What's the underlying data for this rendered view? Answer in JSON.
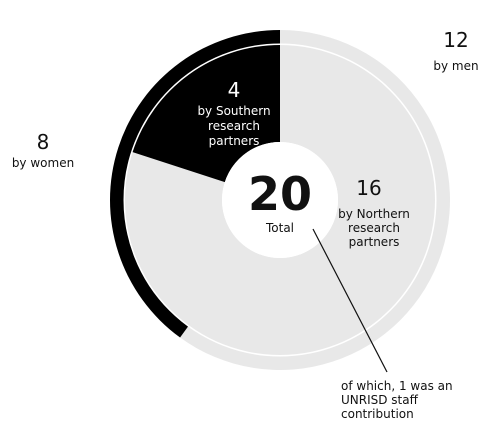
{
  "chart_data": [
    {
      "type": "pie",
      "ring": "outer",
      "slices": [
        {
          "label": "by men",
          "value": 12,
          "color": "#e8e8e8"
        },
        {
          "label": "by women",
          "value": 8,
          "color": "#000000"
        }
      ]
    },
    {
      "type": "pie",
      "ring": "inner",
      "slices": [
        {
          "label": "by Northern research partners",
          "value": 16,
          "color": "#e8e8e8"
        },
        {
          "label": "by Southern research partners",
          "value": 4,
          "color": "#000000"
        }
      ]
    }
  ],
  "center": {
    "value": "20",
    "label": "Total"
  },
  "labels": {
    "men_value": "12",
    "men_text": "by men",
    "women_value": "8",
    "women_text": "by women",
    "southern_value": "4",
    "southern_line1": "by Southern",
    "southern_line2": "research",
    "southern_line3": "partners",
    "northern_value": "16",
    "northern_line1": "by Northern",
    "northern_line2": "research",
    "northern_line3": "partners"
  },
  "annotation": {
    "line1": "of which, 1 was an",
    "line2": "UNRISD staff",
    "line3": "contribution"
  }
}
